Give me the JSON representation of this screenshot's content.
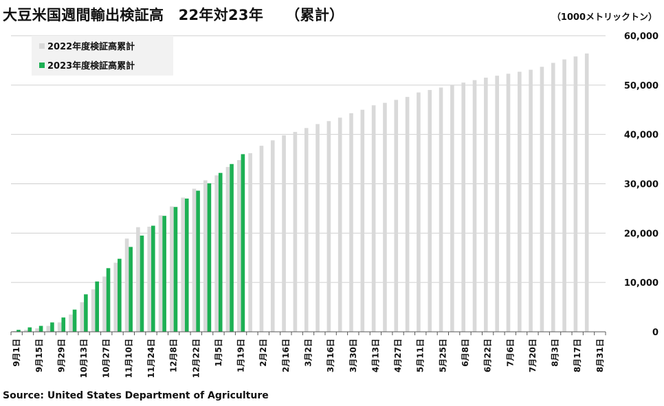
{
  "title": "大豆米国週間輸出検証高　22年対23年　　（累計）",
  "unit_label": "（1000メトリックトン）",
  "source": "Source: United States Department of Agriculture",
  "chart_data": {
    "type": "bar",
    "title": "大豆米国週間輸出検証高　22年対23年　　（累計）",
    "ylim": [
      0,
      60000
    ],
    "y_ticks": [
      "0",
      "10,000",
      "20,000",
      "30,000",
      "40,000",
      "50,000",
      "60,000"
    ],
    "y_tick_values": [
      0,
      10000,
      20000,
      30000,
      40000,
      50000,
      60000
    ],
    "y_axis_side": "right",
    "grid": true,
    "legend_placement": "top-left",
    "x_tick_labels": [
      "9月1日",
      "9月15日",
      "9月29日",
      "10月13日",
      "10月27日",
      "11月10日",
      "11月24日",
      "12月8日",
      "12月22日",
      "1月5日",
      "1月19日",
      "2月2日",
      "2月16日",
      "3月2日",
      "3月16日",
      "3月30日",
      "4月13日",
      "4月27日",
      "5月11日",
      "5月25日",
      "6月8日",
      "6月22日",
      "7月6日",
      "7月20日",
      "8月3日",
      "8月17日",
      "8月31日"
    ],
    "n_weeks": 53,
    "series": [
      {
        "name": "2022年度検証高累計",
        "color": "#d9d9d9",
        "values": [
          150,
          400,
          700,
          1200,
          1900,
          3500,
          6000,
          8600,
          11200,
          14000,
          18900,
          21200,
          21300,
          23600,
          25400,
          27200,
          29000,
          30700,
          31700,
          33400,
          34800,
          36200,
          37700,
          38800,
          39800,
          40500,
          41300,
          42100,
          42700,
          43400,
          44300,
          45000,
          45900,
          46400,
          47000,
          47600,
          48500,
          49000,
          49500,
          50000,
          50500,
          51000,
          51500,
          51900,
          52300,
          52700,
          53100,
          53700,
          54500,
          55200,
          55800,
          56400
        ],
        "period_note": ""
      },
      {
        "name": "2023年度検証高累計",
        "color": "#1db054",
        "values": [
          400,
          900,
          1200,
          1900,
          2900,
          4500,
          7600,
          10200,
          12900,
          14800,
          17200,
          19500,
          21500,
          23500,
          25300,
          27000,
          28600,
          30100,
          32200,
          34000,
          36000
        ]
      }
    ]
  }
}
